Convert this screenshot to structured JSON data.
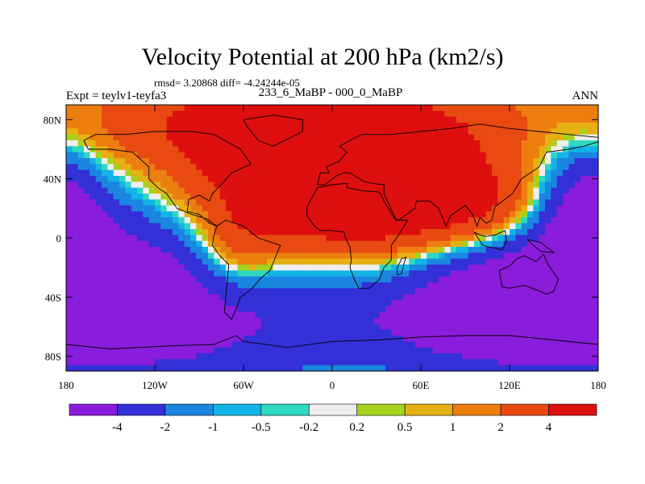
{
  "header": {
    "title": "Velocity Potential at 200 hPa (km2/s)",
    "stats": "rmsd= 3.20868 diff= -4.24244e-05",
    "left_label": "Expt = teylv1-teyfa3",
    "center_label": "233_6_MaBP - 000_0_MaBP",
    "right_label": "ANN"
  },
  "chart_data": {
    "type": "heatmap",
    "title": "Velocity Potential at 200 hPa (km2/s)",
    "xlim": [
      -180,
      180
    ],
    "ylim": [
      -90,
      90
    ],
    "x_ticks": [
      {
        "value": -180,
        "label": "180"
      },
      {
        "value": -120,
        "label": "120W"
      },
      {
        "value": -60,
        "label": "60W"
      },
      {
        "value": 0,
        "label": "0"
      },
      {
        "value": 60,
        "label": "60E"
      },
      {
        "value": 120,
        "label": "120E"
      },
      {
        "value": 180,
        "label": "180"
      }
    ],
    "y_ticks": [
      {
        "value": 80,
        "label": "80N"
      },
      {
        "value": 40,
        "label": "40N"
      },
      {
        "value": 0,
        "label": "0"
      },
      {
        "value": -40,
        "label": "40S"
      },
      {
        "value": -80,
        "label": "80S"
      }
    ],
    "colorbar": {
      "colors": [
        "#8a1cdb",
        "#3330d8",
        "#1a86e0",
        "#12b3e6",
        "#2fd8c0",
        "#eeeeee",
        "#a5d21e",
        "#e6b012",
        "#ec7e10",
        "#e84a12",
        "#de0f0f"
      ],
      "labels": [
        "-4",
        "-2",
        "-1",
        "-0.5",
        "-0.2",
        "0.2",
        "0.5",
        "1",
        "2",
        "4"
      ]
    },
    "field": {
      "background_level": 1,
      "blobs": [
        {
          "lon": -135,
          "lat": -30,
          "slon": 70,
          "slat": 55,
          "amp": -6.0
        },
        {
          "lon": -40,
          "lat": 45,
          "slon": 70,
          "slat": 45,
          "amp": 5.0
        },
        {
          "lon": 35,
          "lat": 25,
          "slon": 60,
          "slat": 38,
          "amp": 4.5
        },
        {
          "lon": 100,
          "lat": 20,
          "slon": 35,
          "slat": 20,
          "amp": 3.0
        },
        {
          "lon": -30,
          "lat": 75,
          "slon": 120,
          "slat": 18,
          "amp": 2.0
        },
        {
          "lon": 20,
          "lat": -50,
          "slon": 110,
          "slat": 35,
          "amp": -4.0
        },
        {
          "lon": 120,
          "lat": -40,
          "slon": 60,
          "slat": 35,
          "amp": -5.0
        },
        {
          "lon": 172,
          "lat": 20,
          "slon": 22,
          "slat": 30,
          "amp": -5.0
        },
        {
          "lon": -65,
          "lat": -10,
          "slon": 20,
          "slat": 22,
          "amp": 3.0
        }
      ]
    },
    "coast_outlines": [
      {
        "name": "north-america",
        "points": [
          [
            -168,
            66
          ],
          [
            -160,
            70
          ],
          [
            -140,
            70
          ],
          [
            -120,
            72
          ],
          [
            -95,
            72
          ],
          [
            -80,
            70
          ],
          [
            -62,
            60
          ],
          [
            -55,
            50
          ],
          [
            -68,
            44
          ],
          [
            -76,
            35
          ],
          [
            -81,
            30
          ],
          [
            -83,
            25
          ],
          [
            -90,
            29
          ],
          [
            -97,
            26
          ],
          [
            -98,
            18
          ],
          [
            -90,
            16
          ],
          [
            -83,
            10
          ],
          [
            -78,
            8
          ],
          [
            -85,
            13
          ],
          [
            -95,
            16
          ],
          [
            -105,
            20
          ],
          [
            -112,
            30
          ],
          [
            -118,
            34
          ],
          [
            -124,
            40
          ],
          [
            -124,
            48
          ],
          [
            -135,
            58
          ],
          [
            -150,
            60
          ],
          [
            -165,
            60
          ],
          [
            -168,
            66
          ]
        ]
      },
      {
        "name": "greenland",
        "points": [
          [
            -60,
            80
          ],
          [
            -40,
            83
          ],
          [
            -20,
            80
          ],
          [
            -20,
            72
          ],
          [
            -40,
            62
          ],
          [
            -50,
            66
          ],
          [
            -58,
            76
          ],
          [
            -60,
            80
          ]
        ]
      },
      {
        "name": "south-america",
        "points": [
          [
            -78,
            8
          ],
          [
            -72,
            12
          ],
          [
            -60,
            8
          ],
          [
            -50,
            0
          ],
          [
            -35,
            -5
          ],
          [
            -38,
            -12
          ],
          [
            -42,
            -22
          ],
          [
            -48,
            -27
          ],
          [
            -55,
            -35
          ],
          [
            -62,
            -40
          ],
          [
            -65,
            -48
          ],
          [
            -68,
            -55
          ],
          [
            -73,
            -50
          ],
          [
            -72,
            -40
          ],
          [
            -71,
            -30
          ],
          [
            -70,
            -18
          ],
          [
            -76,
            -12
          ],
          [
            -81,
            -5
          ],
          [
            -80,
            2
          ],
          [
            -78,
            8
          ]
        ]
      },
      {
        "name": "eurasia",
        "points": [
          [
            -10,
            36
          ],
          [
            -8,
            44
          ],
          [
            -2,
            44
          ],
          [
            -4,
            48
          ],
          [
            5,
            52
          ],
          [
            8,
            56
          ],
          [
            10,
            58
          ],
          [
            5,
            62
          ],
          [
            12,
            66
          ],
          [
            20,
            70
          ],
          [
            40,
            70
          ],
          [
            60,
            72
          ],
          [
            80,
            74
          ],
          [
            100,
            77
          ],
          [
            120,
            74
          ],
          [
            140,
            72
          ],
          [
            160,
            70
          ],
          [
            180,
            68
          ],
          [
            180,
            65
          ],
          [
            170,
            62
          ],
          [
            160,
            60
          ],
          [
            145,
            58
          ],
          [
            140,
            48
          ],
          [
            128,
            40
          ],
          [
            122,
            30
          ],
          [
            110,
            21
          ],
          [
            108,
            12
          ],
          [
            104,
            10
          ],
          [
            100,
            14
          ],
          [
            98,
            8
          ],
          [
            95,
            16
          ],
          [
            90,
            22
          ],
          [
            80,
            15
          ],
          [
            77,
            8
          ],
          [
            72,
            20
          ],
          [
            66,
            25
          ],
          [
            57,
            25
          ],
          [
            56,
            20
          ],
          [
            45,
            12
          ],
          [
            43,
            13
          ],
          [
            35,
            30
          ],
          [
            35,
            36
          ],
          [
            27,
            37
          ],
          [
            22,
            38
          ],
          [
            12,
            44
          ],
          [
            8,
            44
          ],
          [
            3,
            42
          ],
          [
            -5,
            36
          ],
          [
            -10,
            36
          ]
        ]
      },
      {
        "name": "africa",
        "points": [
          [
            -17,
            21
          ],
          [
            -17,
            15
          ],
          [
            -12,
            8
          ],
          [
            -8,
            5
          ],
          [
            0,
            5
          ],
          [
            8,
            4
          ],
          [
            9,
            0
          ],
          [
            12,
            -6
          ],
          [
            13,
            -15
          ],
          [
            12,
            -20
          ],
          [
            15,
            -28
          ],
          [
            18,
            -34
          ],
          [
            25,
            -34
          ],
          [
            32,
            -28
          ],
          [
            35,
            -20
          ],
          [
            40,
            -15
          ],
          [
            40,
            -5
          ],
          [
            45,
            2
          ],
          [
            51,
            12
          ],
          [
            43,
            12
          ],
          [
            35,
            25
          ],
          [
            32,
            31
          ],
          [
            20,
            32
          ],
          [
            10,
            34
          ],
          [
            10,
            37
          ],
          [
            0,
            36
          ],
          [
            -10,
            34
          ],
          [
            -17,
            21
          ]
        ]
      },
      {
        "name": "australia",
        "points": [
          [
            113,
            -22
          ],
          [
            115,
            -33
          ],
          [
            120,
            -34
          ],
          [
            130,
            -32
          ],
          [
            138,
            -35
          ],
          [
            145,
            -38
          ],
          [
            150,
            -36
          ],
          [
            153,
            -28
          ],
          [
            146,
            -18
          ],
          [
            143,
            -11
          ],
          [
            138,
            -16
          ],
          [
            130,
            -12
          ],
          [
            125,
            -14
          ],
          [
            120,
            -19
          ],
          [
            113,
            -22
          ]
        ]
      },
      {
        "name": "antarctica",
        "points": [
          [
            -180,
            -72
          ],
          [
            -150,
            -75
          ],
          [
            -110,
            -73
          ],
          [
            -80,
            -72
          ],
          [
            -65,
            -66
          ],
          [
            -60,
            -70
          ],
          [
            -30,
            -74
          ],
          [
            0,
            -70
          ],
          [
            30,
            -69
          ],
          [
            60,
            -67
          ],
          [
            90,
            -66
          ],
          [
            120,
            -66
          ],
          [
            150,
            -69
          ],
          [
            180,
            -72
          ]
        ]
      },
      {
        "name": "madagascar",
        "points": [
          [
            44,
            -25
          ],
          [
            47,
            -24
          ],
          [
            49,
            -16
          ],
          [
            50,
            -13
          ],
          [
            47,
            -14
          ],
          [
            44,
            -20
          ],
          [
            44,
            -25
          ]
        ]
      },
      {
        "name": "sumatra-borneo",
        "points": [
          [
            96,
            4
          ],
          [
            102,
            -5
          ],
          [
            106,
            -6
          ],
          [
            115,
            -8
          ],
          [
            118,
            -2
          ],
          [
            117,
            5
          ],
          [
            110,
            2
          ],
          [
            104,
            1
          ],
          [
            100,
            2
          ],
          [
            96,
            4
          ]
        ]
      },
      {
        "name": "new-guinea",
        "points": [
          [
            132,
            -1
          ],
          [
            141,
            -3
          ],
          [
            150,
            -10
          ],
          [
            141,
            -9
          ],
          [
            135,
            -4
          ],
          [
            132,
            -1
          ]
        ]
      }
    ]
  }
}
